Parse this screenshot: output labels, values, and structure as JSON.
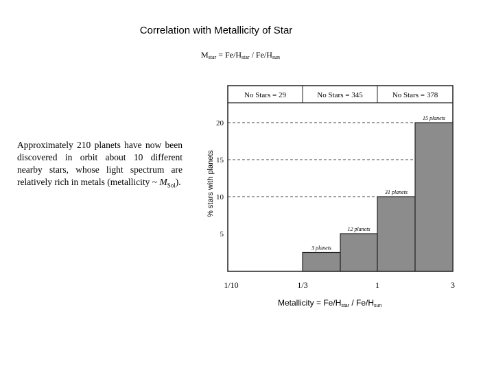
{
  "heading": {
    "title": "Correlation with Metallicity of Star",
    "formula_M": "M",
    "formula_sub1": "star",
    "formula_mid": " = Fe/H",
    "formula_sub2": "star",
    "formula_end": " / Fe/H",
    "formula_sub3": "sun"
  },
  "description": {
    "text": "Approximately 210 planets have now been discovered in orbit about 10 different nearby stars, whose light spectrum are relatively rich in metals (metallicity ~ ",
    "m": "M",
    "sub": "Sol",
    "end": ")."
  },
  "chart_data": {
    "type": "bar",
    "ylabel": "% stars with planets",
    "xlabel_main": "Metallicity = Fe/H",
    "xlabel_sub1": "star",
    "xlabel_mid": " / Fe/H",
    "xlabel_sub2": "sun",
    "x_ticks": [
      "1/10",
      "1/3",
      "1",
      "3"
    ],
    "y_ticks": [
      5,
      10,
      15,
      20
    ],
    "ylim": [
      0,
      25
    ],
    "bars": [
      {
        "label": "3 planets",
        "value": 2.5
      },
      {
        "label": "12 planets",
        "value": 5
      },
      {
        "label": "31 planets",
        "value": 10
      },
      {
        "label": "15 planets",
        "value": 20
      }
    ],
    "header_cells": [
      "No Stars = 29",
      "No Stars = 345",
      "No Stars = 378"
    ],
    "dashed_gridlines": [
      10,
      15,
      20
    ],
    "colors": {
      "bar": "#8c8c8c",
      "frame": "#222222"
    }
  }
}
